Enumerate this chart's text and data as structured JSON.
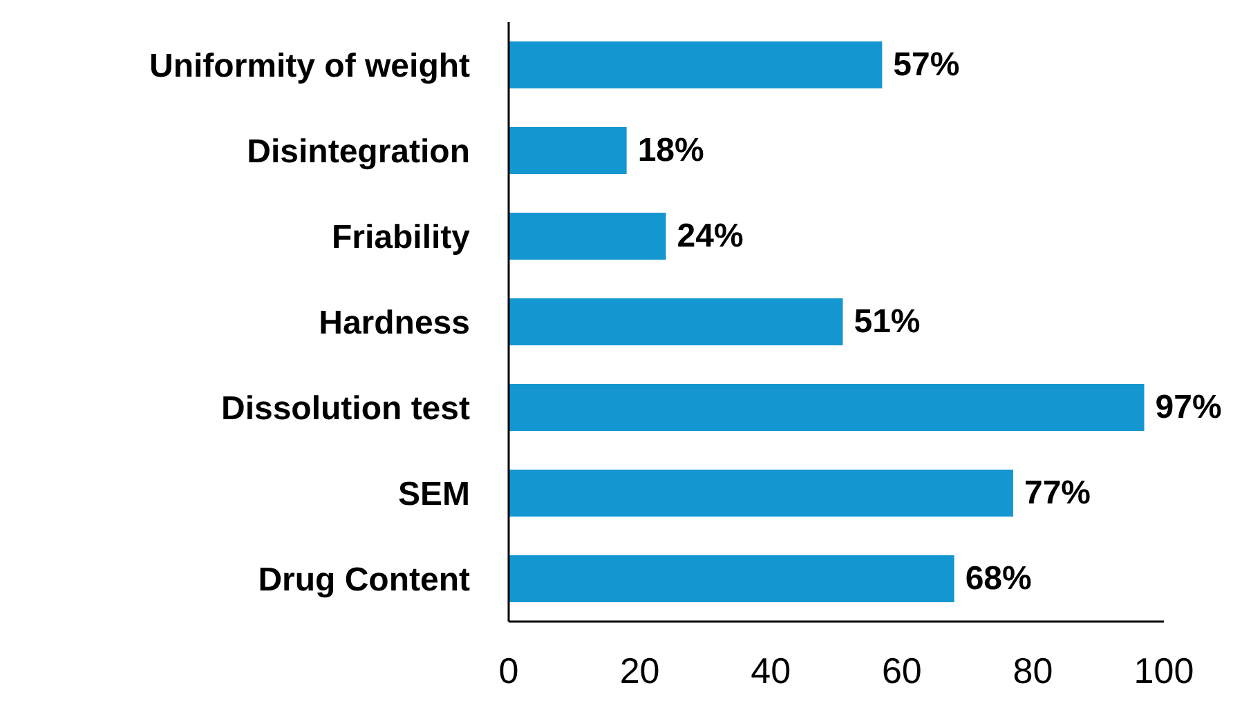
{
  "chart_data": {
    "type": "bar",
    "orientation": "horizontal",
    "categories": [
      "Uniformity of weight",
      "Disintegration",
      "Friability",
      "Hardness",
      "Dissolution test",
      "SEM",
      "Drug Content"
    ],
    "values": [
      57,
      18,
      24,
      51,
      97,
      77,
      68
    ],
    "value_labels": [
      "57%",
      "18%",
      "24%",
      "51%",
      "97%",
      "77%",
      "68%"
    ],
    "color": "#1497d0",
    "xlim": [
      0,
      100
    ],
    "xticks": [
      0,
      20,
      40,
      60,
      80,
      100
    ],
    "grid": false,
    "legend": false
  }
}
